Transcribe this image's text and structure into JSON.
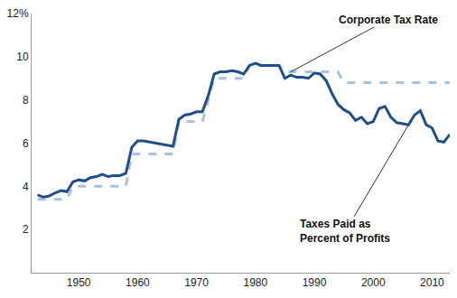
{
  "chart_data": {
    "type": "line",
    "x": [
      1943,
      1944,
      1945,
      1946,
      1947,
      1948,
      1949,
      1950,
      1951,
      1952,
      1953,
      1954,
      1955,
      1956,
      1957,
      1958,
      1959,
      1960,
      1961,
      1962,
      1963,
      1964,
      1965,
      1966,
      1967,
      1968,
      1969,
      1970,
      1971,
      1972,
      1973,
      1974,
      1975,
      1976,
      1977,
      1978,
      1979,
      1980,
      1981,
      1982,
      1983,
      1984,
      1985,
      1986,
      1987,
      1988,
      1989,
      1990,
      1991,
      1992,
      1993,
      1994,
      1995,
      1996,
      1997,
      1998,
      1999,
      2000,
      2001,
      2002,
      2003,
      2004,
      2005,
      2006,
      2007,
      2008,
      2009,
      2010,
      2011,
      2012,
      2013
    ],
    "series": [
      {
        "name": "Corporate Tax Rate",
        "color": "#a9c1e0",
        "line_style": "dashed",
        "values": [
          3.4,
          3.4,
          3.4,
          3.4,
          3.4,
          3.4,
          4.0,
          4.0,
          4.0,
          4.0,
          4.0,
          4.0,
          4.0,
          4.0,
          4.0,
          4.0,
          5.5,
          5.5,
          5.5,
          5.5,
          5.5,
          5.5,
          5.5,
          5.5,
          7.0,
          7.0,
          7.0,
          7.0,
          7.0,
          8.0,
          9.0,
          9.0,
          9.0,
          9.0,
          9.0,
          9.0,
          9.6,
          9.6,
          9.6,
          9.6,
          9.6,
          9.6,
          9.3,
          9.3,
          9.3,
          9.3,
          9.3,
          9.3,
          9.3,
          9.3,
          9.3,
          9.3,
          8.8,
          8.8,
          8.8,
          8.8,
          8.8,
          8.8,
          8.8,
          8.8,
          8.8,
          8.8,
          8.8,
          8.8,
          8.8,
          8.8,
          8.8,
          8.8,
          8.8,
          8.8,
          8.8
        ]
      },
      {
        "name": "Taxes Paid as\nPercent of Profits",
        "color": "#1f4e8c",
        "line_style": "solid",
        "values": [
          3.6,
          3.5,
          3.55,
          3.7,
          3.8,
          3.75,
          4.2,
          4.3,
          4.25,
          4.4,
          4.45,
          4.55,
          4.45,
          4.5,
          4.5,
          4.6,
          5.8,
          6.1,
          6.1,
          6.05,
          6.0,
          5.95,
          5.9,
          5.85,
          7.1,
          7.3,
          7.35,
          7.45,
          7.45,
          8.2,
          9.2,
          9.3,
          9.3,
          9.35,
          9.3,
          9.2,
          9.6,
          9.7,
          9.6,
          9.6,
          9.6,
          9.6,
          9.0,
          9.15,
          9.05,
          9.05,
          9.0,
          9.25,
          9.2,
          8.9,
          8.3,
          7.8,
          7.55,
          7.4,
          7.05,
          7.2,
          6.9,
          7.0,
          7.6,
          7.7,
          7.2,
          6.95,
          6.9,
          6.85,
          7.3,
          7.5,
          6.85,
          6.7,
          6.1,
          6.05,
          6.4
        ]
      }
    ],
    "xlim": [
      1942,
      2013
    ],
    "xticks": [
      1950,
      1960,
      1970,
      1980,
      1990,
      2000,
      2010
    ],
    "ylim": [
      0,
      12
    ],
    "yticks": [
      2,
      4,
      6,
      8,
      10,
      {
        "value": 12,
        "label": "12%"
      }
    ],
    "grid": false,
    "annotations": [
      {
        "text": "Corporate Tax Rate",
        "x": 1986,
        "y": 9.3
      },
      {
        "text": "Taxes Paid as\nPercent of Profits",
        "x": 2006,
        "y": 6.85
      }
    ]
  }
}
